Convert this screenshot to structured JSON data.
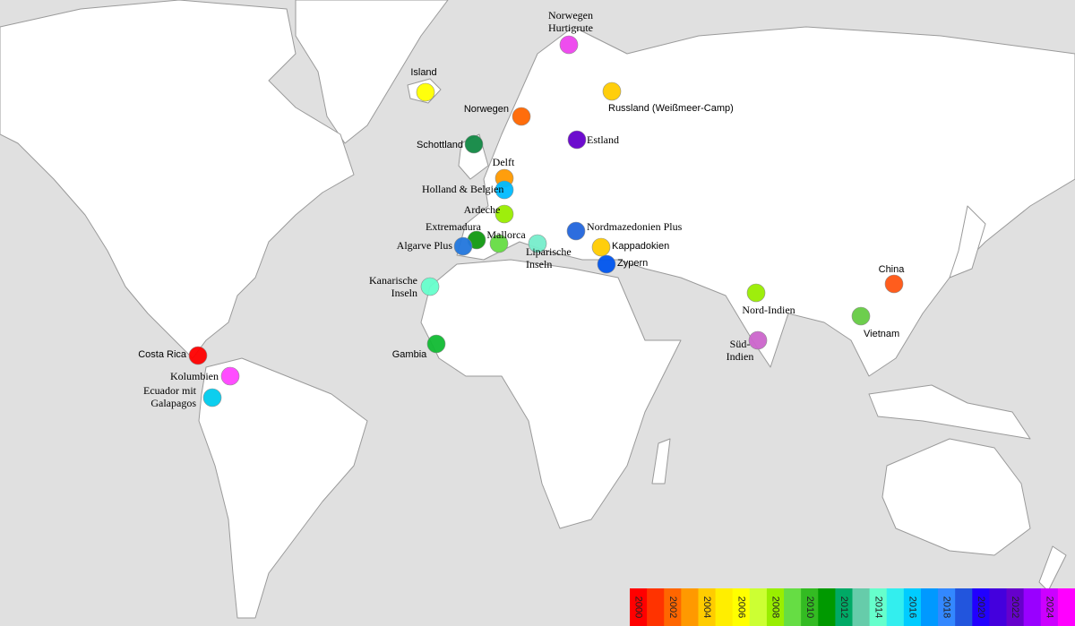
{
  "markers": [
    {
      "lines": [
        "Norwegen",
        "Hurtigrute"
      ],
      "color": "#ee44ee"
    },
    {
      "lines": [
        "Island"
      ],
      "color": "#ffff00"
    },
    {
      "lines": [
        "Russland (Weißmeer-Camp)"
      ],
      "color": "#ffcc00"
    },
    {
      "lines": [
        "Norwegen"
      ],
      "color": "#ff6600"
    },
    {
      "lines": [
        "Schottland"
      ],
      "color": "#118844"
    },
    {
      "lines": [
        "Estland"
      ],
      "color": "#6600cc"
    },
    {
      "lines": [
        "Delft"
      ],
      "color": "#ff9900"
    },
    {
      "lines": [
        "Holland & Belgien"
      ],
      "color": "#00bbff"
    },
    {
      "lines": [
        "Ardeche"
      ],
      "color": "#99ee00"
    },
    {
      "lines": [
        "Nordmazedonien Plus"
      ],
      "color": "#2266dd"
    },
    {
      "lines": [
        "Extremadura"
      ],
      "color": "#119911"
    },
    {
      "lines": [
        "Mallorca"
      ],
      "color": "#66dd44"
    },
    {
      "lines": [
        "Algarve Plus"
      ],
      "color": "#2277dd"
    },
    {
      "lines": [
        "Liparische",
        "Inseln"
      ],
      "color": "#77eecc"
    },
    {
      "lines": [
        "Kappadokien"
      ],
      "color": "#ffcc00"
    },
    {
      "lines": [
        "Zypern"
      ],
      "color": "#0055ee"
    },
    {
      "lines": [
        "Kanarische",
        "Inseln"
      ],
      "color": "#66ffcc"
    },
    {
      "lines": [
        "China"
      ],
      "color": "#ff5511"
    },
    {
      "lines": [
        "Nord-Indien"
      ],
      "color": "#99ee00"
    },
    {
      "lines": [
        "Vietnam"
      ],
      "color": "#66cc44"
    },
    {
      "lines": [
        "Süd-",
        "Indien"
      ],
      "color": "#cc66cc"
    },
    {
      "lines": [
        "Gambia"
      ],
      "color": "#11bb33"
    },
    {
      "lines": [
        "Costa Rica"
      ],
      "color": "#ff0000"
    },
    {
      "lines": [
        "Kolumbien"
      ],
      "color": "#ff44ff"
    },
    {
      "lines": [
        "Ecuador mit",
        "Galapagos"
      ],
      "color": "#00ccee"
    }
  ],
  "legend": {
    "cells": [
      {
        "color": "#ff0000",
        "label": "2000"
      },
      {
        "color": "#ff3300",
        "label": null
      },
      {
        "color": "#ff6600",
        "label": "2002"
      },
      {
        "color": "#ff9900",
        "label": null
      },
      {
        "color": "#ffcc00",
        "label": "2004"
      },
      {
        "color": "#ffee00",
        "label": null
      },
      {
        "color": "#ffff00",
        "label": "2006"
      },
      {
        "color": "#ccff33",
        "label": null
      },
      {
        "color": "#99ee00",
        "label": "2008"
      },
      {
        "color": "#66dd44",
        "label": null
      },
      {
        "color": "#33bb22",
        "label": "2010"
      },
      {
        "color": "#009900",
        "label": null
      },
      {
        "color": "#00aa66",
        "label": "2012"
      },
      {
        "color": "#66ccaa",
        "label": null
      },
      {
        "color": "#66ffcc",
        "label": "2014"
      },
      {
        "color": "#33eeee",
        "label": null
      },
      {
        "color": "#00ccff",
        "label": "2016"
      },
      {
        "color": "#0099ff",
        "label": null
      },
      {
        "color": "#3388ff",
        "label": "2018"
      },
      {
        "color": "#2255dd",
        "label": null
      },
      {
        "color": "#2200ff",
        "label": "2020"
      },
      {
        "color": "#4400dd",
        "label": null
      },
      {
        "color": "#6600cc",
        "label": "2022"
      },
      {
        "color": "#9900ff",
        "label": null
      },
      {
        "color": "#cc00ff",
        "label": "2024"
      },
      {
        "color": "#ff00ff",
        "label": null
      }
    ]
  }
}
